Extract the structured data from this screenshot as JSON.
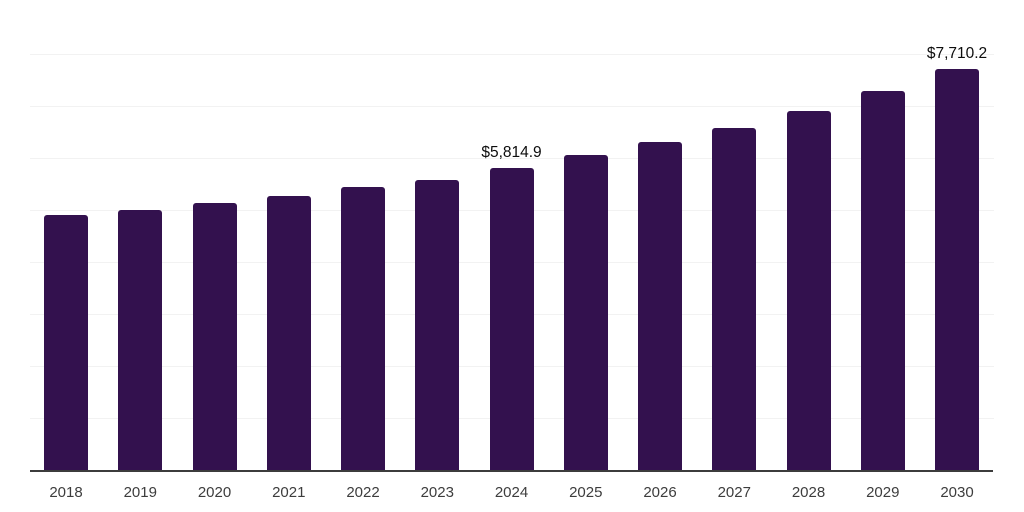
{
  "chart_data": {
    "type": "bar",
    "title": "",
    "xlabel": "",
    "ylabel": "",
    "categories": [
      "2018",
      "2019",
      "2020",
      "2021",
      "2022",
      "2023",
      "2024",
      "2025",
      "2026",
      "2027",
      "2028",
      "2029",
      "2030"
    ],
    "values": [
      4905,
      5005,
      5135,
      5270,
      5450,
      5580,
      5814.9,
      6050,
      6305,
      6580,
      6910,
      7295,
      7710.2
    ],
    "data_labels": [
      "",
      "",
      "",
      "",
      "",
      "",
      "$5,814.9",
      "",
      "",
      "",
      "",
      "",
      "$7,710.2"
    ],
    "ylim": [
      0,
      9000
    ],
    "grid_step": 1000,
    "grid": true,
    "legend": false,
    "colors": {
      "bar": "#33114e",
      "gridline": "#f2f2f2",
      "axis_line": "#3c3c3c",
      "tick_label": "#3d3d3d",
      "value_label": "#0d0d0d",
      "background": "#ffffff"
    }
  }
}
